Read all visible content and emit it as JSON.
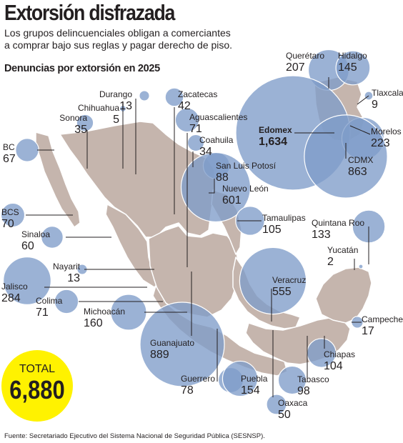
{
  "title": "Extorsión disfrazada",
  "subtitle_lines": [
    "Los grupos delincuenciales obligan a comerciantes",
    "a comprar bajo sus reglas y pagar derecho de piso."
  ],
  "section_title": "Denuncias por extorsión en 2025",
  "total": {
    "label": "TOTAL",
    "value": "6,880"
  },
  "source": "Fuente: Secretariado Ejecutivo del Sistema Nacional de Seguridad Pública (SESNSP).",
  "colors": {
    "bubble": "#7f9cc9",
    "map": "#c5b5ad",
    "total_badge": "#fff200",
    "text": "#231f20"
  },
  "chart_data": {
    "type": "bubble-map",
    "metric": "Denuncias por extorsión en 2025",
    "states": [
      {
        "name": "Durango",
        "value": 13
      },
      {
        "name": "Chihuahua",
        "value": 5
      },
      {
        "name": "Zacatecas",
        "value": 42
      },
      {
        "name": "Sonora",
        "value": 35
      },
      {
        "name": "Aguascalientes",
        "value": 71
      },
      {
        "name": "BC",
        "value": 67
      },
      {
        "name": "Coahuila",
        "value": 34
      },
      {
        "name": "San Luis Potosí",
        "value": 88
      },
      {
        "name": "Nuevo León",
        "value": 601
      },
      {
        "name": "BCS",
        "value": 70
      },
      {
        "name": "Tamaulipas",
        "value": 105
      },
      {
        "name": "Sinaloa",
        "value": 60
      },
      {
        "name": "Nayarit",
        "value": 13
      },
      {
        "name": "Jalisco",
        "value": 284
      },
      {
        "name": "Colima",
        "value": 71
      },
      {
        "name": "Michoacán",
        "value": 160
      },
      {
        "name": "Guanajuato",
        "value": 889
      },
      {
        "name": "Guerrero",
        "value": 78
      },
      {
        "name": "Puebla",
        "value": 154
      },
      {
        "name": "Oaxaca",
        "value": 50
      },
      {
        "name": "Tabasco",
        "value": 98
      },
      {
        "name": "Chiapas",
        "value": 104
      },
      {
        "name": "Campeche",
        "value": 17
      },
      {
        "name": "Veracruz",
        "value": 555
      },
      {
        "name": "Yucatán",
        "value": 2
      },
      {
        "name": "Quintana Roo",
        "value": 133
      },
      {
        "name": "Querétaro",
        "value": 207
      },
      {
        "name": "Hidalgo",
        "value": 145
      },
      {
        "name": "Tlaxcala",
        "value": 9
      },
      {
        "name": "Edomex",
        "value": 1634
      },
      {
        "name": "Morelos",
        "value": 223
      },
      {
        "name": "CDMX",
        "value": 863
      }
    ]
  }
}
